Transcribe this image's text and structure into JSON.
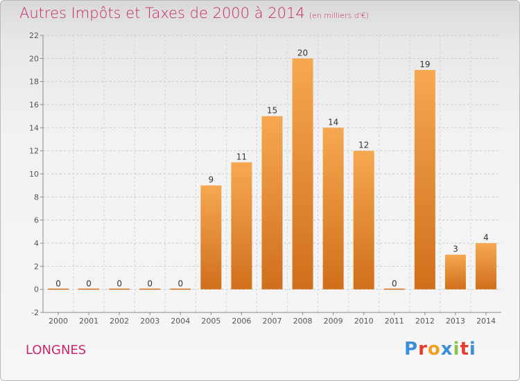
{
  "header": {
    "title": "Autres Impôts et Taxes de 2000 à 2014",
    "subtitle": "(en milliers d'€)"
  },
  "footer": {
    "commune": "LONGNES",
    "logo_text": "Proxiti"
  },
  "colors": {
    "accent": "#c8286b",
    "bar_top": "#f6a851",
    "bar_bottom": "#d06f1b",
    "logo_letters": [
      "#3a8fd6",
      "#e63b2e",
      "#f0a020",
      "#3a8fd6",
      "#8bc34a",
      "#e63b2e",
      "#3a8fd6"
    ]
  },
  "chart_data": {
    "type": "bar",
    "title": "Autres Impôts et Taxes de 2000 à 2014",
    "categories": [
      "2000",
      "2001",
      "2002",
      "2003",
      "2004",
      "2005",
      "2006",
      "2007",
      "2008",
      "2009",
      "2010",
      "2011",
      "2012",
      "2013",
      "2014"
    ],
    "values": [
      0,
      0,
      0,
      0,
      0,
      9,
      11,
      15,
      20,
      14,
      12,
      0,
      19,
      3,
      4
    ],
    "data_labels": [
      "0",
      "0",
      "0",
      "0",
      "0",
      "9",
      "11",
      "15",
      "20",
      "14",
      "12",
      "0",
      "19",
      "3",
      "4"
    ],
    "ylim": [
      -2,
      22
    ],
    "yticks": [
      -2,
      0,
      2,
      4,
      6,
      8,
      10,
      12,
      14,
      16,
      18,
      20,
      22
    ],
    "grid": true,
    "legend": "none"
  }
}
